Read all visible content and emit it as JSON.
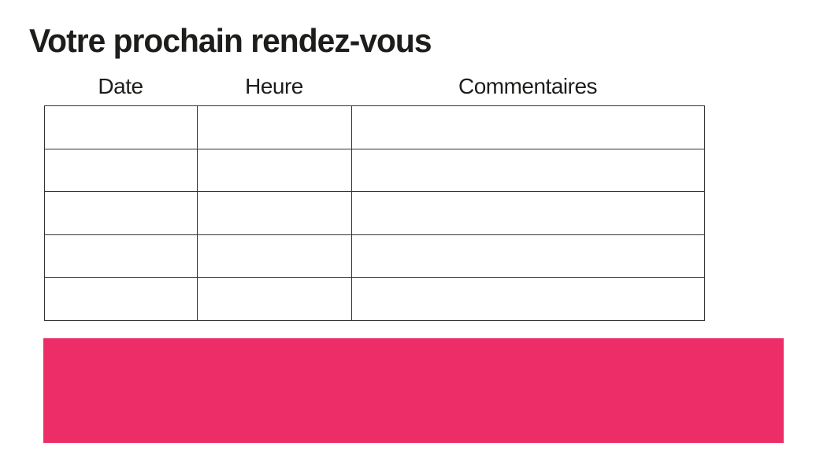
{
  "page": {
    "title": "Votre prochain rendez-vous"
  },
  "table": {
    "columns": [
      {
        "key": "date",
        "label": "Date"
      },
      {
        "key": "heure",
        "label": "Heure"
      },
      {
        "key": "commentaires",
        "label": "Commentaires"
      }
    ],
    "rows": [
      [
        "",
        "",
        ""
      ],
      [
        "",
        "",
        ""
      ],
      [
        "",
        "",
        ""
      ],
      [
        "",
        "",
        ""
      ],
      [
        "",
        "",
        ""
      ]
    ]
  },
  "colors": {
    "accent_pink": "#ED2D67",
    "table_border": "#333333",
    "title_text": "#1D1D1B"
  }
}
